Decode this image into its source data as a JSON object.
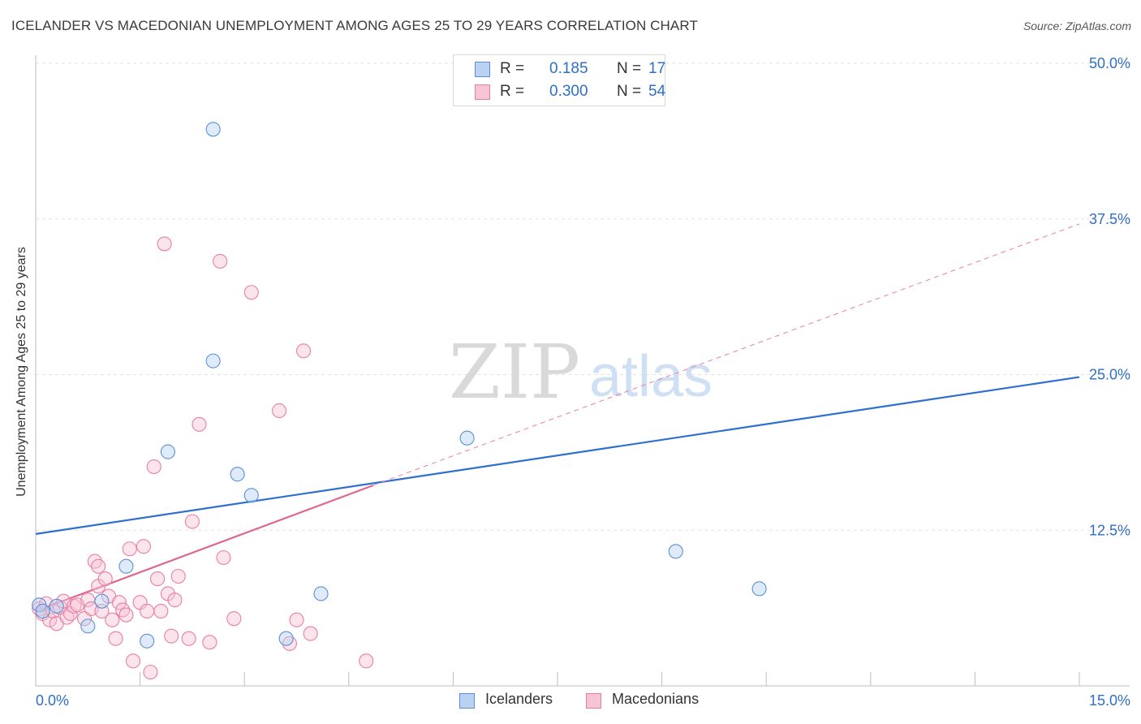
{
  "title": "ICELANDER VS MACEDONIAN UNEMPLOYMENT AMONG AGES 25 TO 29 YEARS CORRELATION CHART",
  "source": "Source: ZipAtlas.com",
  "watermark": {
    "zip": "ZIP",
    "atlas": "atlas"
  },
  "legend": {
    "rows": [
      {
        "r_label": "R =",
        "r_value": "0.185",
        "n_label": "N =",
        "n_value": "17"
      },
      {
        "r_label": "R =",
        "r_value": "0.300",
        "n_label": "N =",
        "n_value": "54"
      }
    ]
  },
  "bottom_legend": {
    "series1": "Icelanders",
    "series2": "Macedonians"
  },
  "chart_data": {
    "type": "scatter",
    "title": "ICELANDER VS MACEDONIAN UNEMPLOYMENT AMONG AGES 25 TO 29 YEARS CORRELATION CHART",
    "xlabel": "",
    "ylabel": "Unemployment Among Ages 25 to 29 years",
    "xlim": [
      0,
      15
    ],
    "ylim": [
      0,
      50
    ],
    "x_tick_labels": [
      "0.0%",
      "15.0%"
    ],
    "y_ticks": [
      12.5,
      25,
      37.5,
      50
    ],
    "y_tick_labels": [
      "12.5%",
      "25.0%",
      "37.5%",
      "50.0%"
    ],
    "colors": {
      "icelanders": "#5b8fd6",
      "icelanders_fill": "#b9d2f3",
      "macedonians": "#e87fa2",
      "macedonians_fill": "#f7c4d4",
      "axis_text": "#2f6fc4"
    },
    "series": [
      {
        "name": "Icelanders",
        "points": [
          [
            0.05,
            6.5
          ],
          [
            0.1,
            6.0
          ],
          [
            0.3,
            6.4
          ],
          [
            0.75,
            4.8
          ],
          [
            0.95,
            6.8
          ],
          [
            1.3,
            9.6
          ],
          [
            1.6,
            3.6
          ],
          [
            1.9,
            18.8
          ],
          [
            2.55,
            26.1
          ],
          [
            2.55,
            44.7
          ],
          [
            2.9,
            17.0
          ],
          [
            3.1,
            15.3
          ],
          [
            3.6,
            3.8
          ],
          [
            4.1,
            7.4
          ],
          [
            6.2,
            19.9
          ],
          [
            9.2,
            10.8
          ],
          [
            10.4,
            7.8
          ]
        ],
        "trend": {
          "x": [
            0,
            15
          ],
          "y": [
            12.2,
            24.8
          ]
        }
      },
      {
        "name": "Macedonians",
        "points": [
          [
            0.05,
            6.2
          ],
          [
            0.1,
            5.8
          ],
          [
            0.15,
            6.6
          ],
          [
            0.2,
            5.3
          ],
          [
            0.25,
            6.0
          ],
          [
            0.3,
            5.0
          ],
          [
            0.35,
            6.3
          ],
          [
            0.4,
            6.8
          ],
          [
            0.45,
            5.5
          ],
          [
            0.5,
            5.8
          ],
          [
            0.55,
            6.4
          ],
          [
            0.6,
            6.5
          ],
          [
            0.7,
            5.4
          ],
          [
            0.75,
            6.9
          ],
          [
            0.8,
            6.2
          ],
          [
            0.85,
            10.0
          ],
          [
            0.9,
            8.0
          ],
          [
            0.9,
            9.6
          ],
          [
            0.95,
            6.0
          ],
          [
            1.0,
            8.6
          ],
          [
            1.05,
            7.2
          ],
          [
            1.1,
            5.3
          ],
          [
            1.15,
            3.8
          ],
          [
            1.2,
            6.7
          ],
          [
            1.25,
            6.1
          ],
          [
            1.3,
            5.7
          ],
          [
            1.35,
            11.0
          ],
          [
            1.4,
            2.0
          ],
          [
            1.5,
            6.7
          ],
          [
            1.55,
            11.2
          ],
          [
            1.6,
            6.0
          ],
          [
            1.65,
            1.1
          ],
          [
            1.7,
            17.6
          ],
          [
            1.75,
            8.6
          ],
          [
            1.8,
            6.0
          ],
          [
            1.85,
            35.5
          ],
          [
            1.9,
            7.4
          ],
          [
            1.95,
            4.0
          ],
          [
            2.0,
            6.9
          ],
          [
            2.05,
            8.8
          ],
          [
            2.2,
            3.8
          ],
          [
            2.25,
            13.2
          ],
          [
            2.35,
            21.0
          ],
          [
            2.5,
            3.5
          ],
          [
            2.65,
            34.1
          ],
          [
            2.7,
            10.3
          ],
          [
            2.85,
            5.4
          ],
          [
            3.1,
            31.6
          ],
          [
            3.5,
            22.1
          ],
          [
            3.65,
            3.4
          ],
          [
            3.75,
            5.3
          ],
          [
            3.85,
            26.9
          ],
          [
            3.95,
            4.2
          ],
          [
            4.75,
            2.0
          ]
        ],
        "trend": {
          "x": [
            0,
            4.85
          ],
          "y": [
            6.0,
            16.1
          ]
        },
        "trend_extension": {
          "x": [
            4.85,
            15
          ],
          "y": [
            16.1,
            37.1
          ]
        }
      }
    ]
  }
}
